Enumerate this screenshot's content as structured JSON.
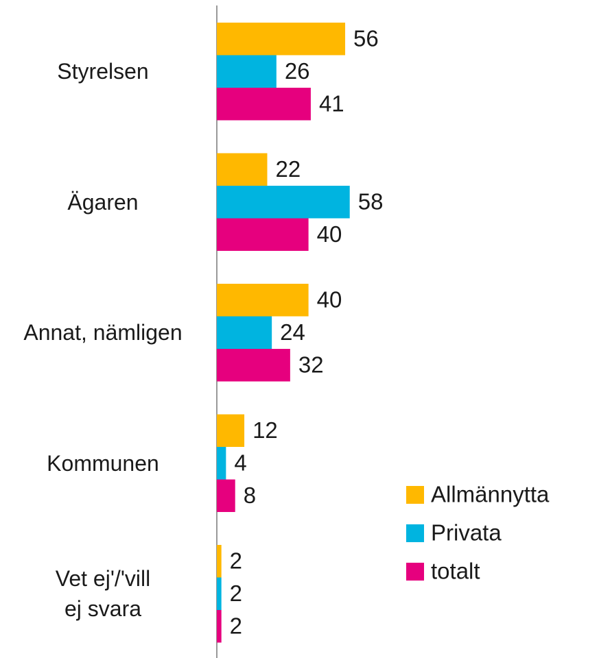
{
  "chart_data": {
    "type": "hbar",
    "categories": [
      "Styrelsen",
      "Ägaren",
      "Annat, nämligen",
      "Kommunen",
      "Vet ej'/'vill ej svara"
    ],
    "series": [
      {
        "name": "Allmännytta",
        "color": "#ffb800",
        "values": [
          56,
          22,
          40,
          12,
          2
        ]
      },
      {
        "name": "Privata",
        "color": "#00b4e0",
        "values": [
          26,
          58,
          24,
          4,
          2
        ]
      },
      {
        "name": "totalt",
        "color": "#e6007e",
        "values": [
          41,
          40,
          32,
          8,
          2
        ]
      }
    ],
    "legend": "right"
  }
}
